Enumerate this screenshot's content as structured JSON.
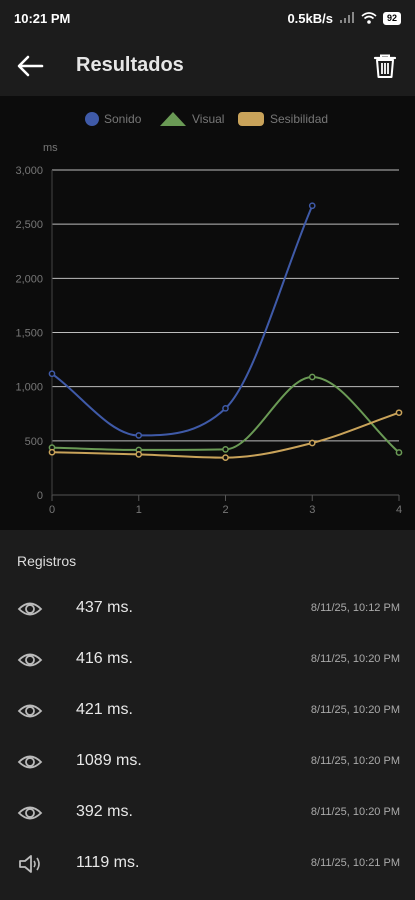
{
  "status_bar": {
    "time": "10:21 PM",
    "speed": "0.5kB/s",
    "battery": "92"
  },
  "header": {
    "title": "Resultados"
  },
  "chart_data": {
    "type": "line",
    "ylabel": "ms",
    "x": [
      0,
      1,
      2,
      3,
      4
    ],
    "ylim": [
      0,
      3000
    ],
    "yticks": [
      "0",
      "500",
      "1,000",
      "1,500",
      "2,000",
      "2,500",
      "3,000"
    ],
    "xticks": [
      "0",
      "1",
      "2",
      "3",
      "4"
    ],
    "legend_position": "top",
    "series": [
      {
        "name": "Sonido",
        "color": "#3f5aa8",
        "marker": "circle",
        "values": [
          1119,
          550,
          800,
          2670,
          null
        ]
      },
      {
        "name": "Visual",
        "color": "#6a9a55",
        "marker": "triangle",
        "values": [
          437,
          416,
          421,
          1089,
          392
        ]
      },
      {
        "name": "Sesibilidad",
        "color": "#c9a35a",
        "marker": "rect",
        "values": [
          395,
          375,
          345,
          480,
          760
        ]
      }
    ]
  },
  "records": {
    "heading": "Registros",
    "items": [
      {
        "icon": "eye-icon",
        "value": "437 ms.",
        "time": "8/11/25, 10:12 PM"
      },
      {
        "icon": "eye-icon",
        "value": "416 ms.",
        "time": "8/11/25, 10:20 PM"
      },
      {
        "icon": "eye-icon",
        "value": "421 ms.",
        "time": "8/11/25, 10:20 PM"
      },
      {
        "icon": "eye-icon",
        "value": "1089 ms.",
        "time": "8/11/25, 10:20 PM"
      },
      {
        "icon": "eye-icon",
        "value": "392 ms.",
        "time": "8/11/25, 10:20 PM"
      },
      {
        "icon": "speaker-icon",
        "value": "1119 ms.",
        "time": "8/11/25, 10:21 PM"
      }
    ]
  }
}
